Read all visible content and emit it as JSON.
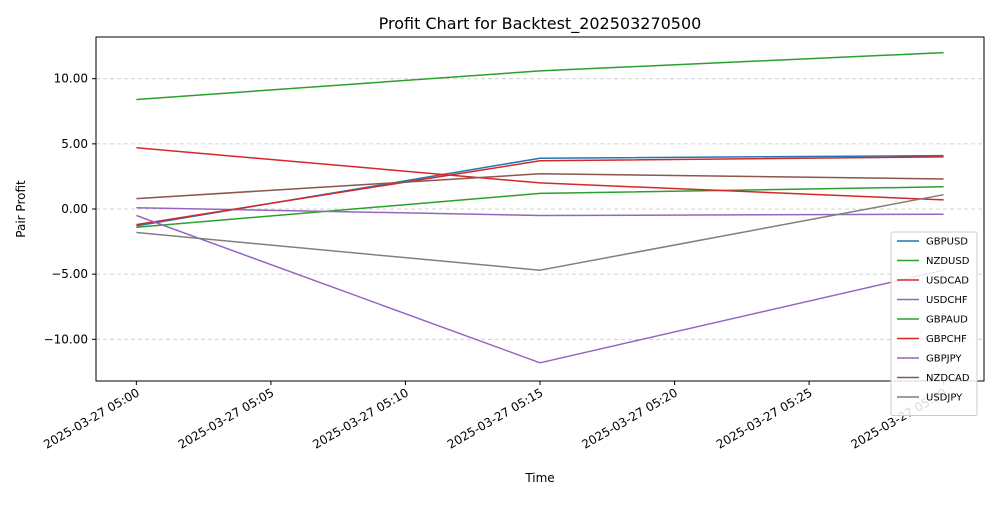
{
  "chart_data": {
    "type": "line",
    "title": "Profit Chart for Backtest_202503270500",
    "xlabel": "Time",
    "ylabel": "Pair Profit",
    "x": [
      "2025-03-27 05:00",
      "2025-03-27 05:15",
      "2025-03-27 05:30"
    ],
    "x_ticks": [
      "2025-03-27 05:00",
      "2025-03-27 05:05",
      "2025-03-27 05:10",
      "2025-03-27 05:15",
      "2025-03-27 05:20",
      "2025-03-27 05:25",
      "2025-03-27 05:30"
    ],
    "y_ticks": [
      10.0,
      5.0,
      0.0,
      -5.0,
      -10.0
    ],
    "y_tick_labels": [
      "10.00",
      "5.00",
      "0.00",
      "−5.00",
      "−10.00"
    ],
    "xlim": [
      "2025-03-27 04:58:30",
      "2025-03-27 05:31:30"
    ],
    "ylim": [
      -13.2,
      13.2
    ],
    "grid": "y-dashed",
    "legend_position": "lower-right",
    "series": [
      {
        "name": "GBPUSD",
        "color": "#1f77b4",
        "values": [
          -1.3,
          3.9,
          4.1
        ]
      },
      {
        "name": "NZDUSD",
        "color": "#2ca02c",
        "values": [
          -1.4,
          1.2,
          1.7
        ]
      },
      {
        "name": "USDCAD",
        "color": "#d62728",
        "values": [
          4.7,
          2.0,
          0.7
        ]
      },
      {
        "name": "USDCHF",
        "color": "#9467bd",
        "values": [
          0.1,
          -0.5,
          -0.4
        ]
      },
      {
        "name": "GBPAUD",
        "color": "#2ca02c",
        "values": [
          8.4,
          10.6,
          12.0
        ]
      },
      {
        "name": "GBPCHF",
        "color": "#d62728",
        "values": [
          -1.2,
          3.7,
          4.0
        ]
      },
      {
        "name": "GBPJPY",
        "color": "#9467bd",
        "values": [
          -0.5,
          -11.8,
          -4.7
        ]
      },
      {
        "name": "NZDCAD",
        "color": "#8c564b",
        "values": [
          0.8,
          2.7,
          2.3
        ]
      },
      {
        "name": "USDJPY",
        "color": "#7f7f7f",
        "values": [
          -1.8,
          -4.7,
          1.1
        ]
      }
    ]
  }
}
